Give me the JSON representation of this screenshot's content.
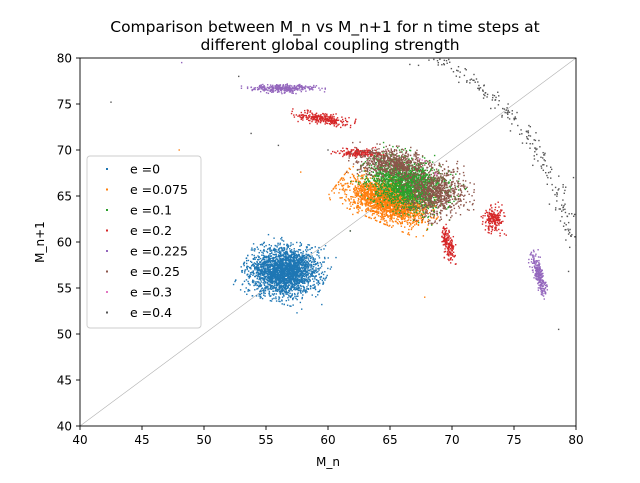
{
  "chart_data": {
    "type": "scatter",
    "title": "Comparison between M_n vs M_n+1 for n time steps at\ndifferent global coupling strength",
    "xlabel": "M_n",
    "ylabel": "M_n+1",
    "xlim": [
      40,
      80
    ],
    "ylim": [
      40,
      80
    ],
    "xticks": [
      40,
      45,
      50,
      55,
      60,
      65,
      70,
      75,
      80
    ],
    "yticks": [
      40,
      45,
      50,
      55,
      60,
      65,
      70,
      75,
      80
    ],
    "grid": false,
    "legend_position": "center-left",
    "reference_line": {
      "from": [
        40,
        40
      ],
      "to": [
        80,
        80
      ],
      "color": "#b0b0b0"
    },
    "series": [
      {
        "name": "e =0",
        "color": "#1f77b4",
        "clusters": [
          {
            "cx": 56.5,
            "cy": 56.8,
            "sx": 1.3,
            "sy": 1.3,
            "rot": -20,
            "n": 2600
          }
        ],
        "outliers": [
          [
            53.0,
            57.3
          ],
          [
            57.5,
            52.3
          ],
          [
            59.5,
            53.2
          ],
          [
            59.8,
            59.6
          ],
          [
            54.0,
            59.8
          ],
          [
            55.2,
            60.8
          ]
        ]
      },
      {
        "name": "e =0.075",
        "color": "#ff7f0e",
        "clusters": [
          {
            "cx": 64.8,
            "cy": 64.5,
            "sx": 1.7,
            "sy": 0.9,
            "rot": -30,
            "n": 2200
          }
        ],
        "outliers": [
          [
            48.0,
            70.0
          ],
          [
            57.8,
            67.6
          ],
          [
            67.8,
            54.0
          ],
          [
            62.0,
            63.0
          ],
          [
            66.5,
            61.0
          ]
        ]
      },
      {
        "name": "e =0.1",
        "color": "#2ca02c",
        "clusters": [
          {
            "cx": 66.4,
            "cy": 66.3,
            "sx": 1.6,
            "sy": 1.2,
            "rot": -35,
            "n": 2000
          }
        ],
        "outliers": [
          [
            61.8,
            61.2
          ],
          [
            68.6,
            69.4
          ],
          [
            69.8,
            62.4
          ],
          [
            64.0,
            68.8
          ]
        ]
      },
      {
        "name": "e =0.2",
        "color": "#d62728",
        "clusters": [
          {
            "cx": 59.6,
            "cy": 73.4,
            "sx": 1.0,
            "sy": 0.28,
            "rot": -12,
            "n": 260
          },
          {
            "cx": 62.6,
            "cy": 69.7,
            "sx": 0.9,
            "sy": 0.22,
            "rot": 0,
            "n": 180
          },
          {
            "cx": 73.4,
            "cy": 62.5,
            "sx": 0.4,
            "sy": 0.7,
            "rot": 0,
            "n": 200
          },
          {
            "cx": 69.7,
            "cy": 59.8,
            "sx": 0.22,
            "sy": 0.9,
            "rot": 10,
            "n": 180
          }
        ],
        "outliers": [
          [
            60.8,
            72.7
          ],
          [
            58.0,
            73.5
          ]
        ]
      },
      {
        "name": "e =0.225",
        "color": "#9467bd",
        "clusters": [
          {
            "cx": 56.4,
            "cy": 76.7,
            "sx": 1.3,
            "sy": 0.22,
            "rot": 0,
            "n": 320
          },
          {
            "cx": 77.0,
            "cy": 56.4,
            "sx": 0.2,
            "sy": 1.1,
            "rot": 12,
            "n": 240
          }
        ],
        "outliers": [
          [
            48.2,
            79.5
          ],
          [
            53.8,
            76.8
          ],
          [
            76.2,
            58.1
          ]
        ]
      },
      {
        "name": "e =0.25",
        "color": "#8c564b",
        "clusters": [
          {
            "cx": 65.3,
            "cy": 68.5,
            "sx": 1.4,
            "sy": 0.75,
            "rot": -8,
            "n": 700
          },
          {
            "cx": 68.8,
            "cy": 65.4,
            "sx": 1.15,
            "sy": 1.3,
            "rot": 0,
            "n": 800
          }
        ],
        "outliers": []
      },
      {
        "name": "e =0.3",
        "color": "#e377c2",
        "clusters": [],
        "outliers": [
          [
            68.7,
            67.4
          ],
          [
            68.8,
            67.3
          ],
          [
            68.6,
            67.5
          ],
          [
            67.6,
            68.9
          ],
          [
            67.8,
            68.8
          ],
          [
            67.4,
            69.0
          ]
        ]
      },
      {
        "name": "e =0.4",
        "color": "#555555",
        "clusters": [],
        "arc": {
          "x0": 68.2,
          "y0": 80.5,
          "x1": 80.0,
          "y1": 59.5,
          "bow": 1.8,
          "n": 220,
          "spread": 0.35
        },
        "outliers": [
          [
            42.5,
            75.2
          ],
          [
            52.8,
            78.0
          ],
          [
            53.8,
            71.8
          ],
          [
            56.0,
            70.5
          ],
          [
            60.0,
            70.0
          ],
          [
            61.8,
            61.2
          ],
          [
            63.8,
            68.6
          ],
          [
            66.6,
            79.3
          ],
          [
            67.3,
            79.2
          ],
          [
            78.6,
            50.5
          ],
          [
            79.4,
            56.8
          ],
          [
            79.8,
            67.0
          ]
        ]
      }
    ]
  }
}
